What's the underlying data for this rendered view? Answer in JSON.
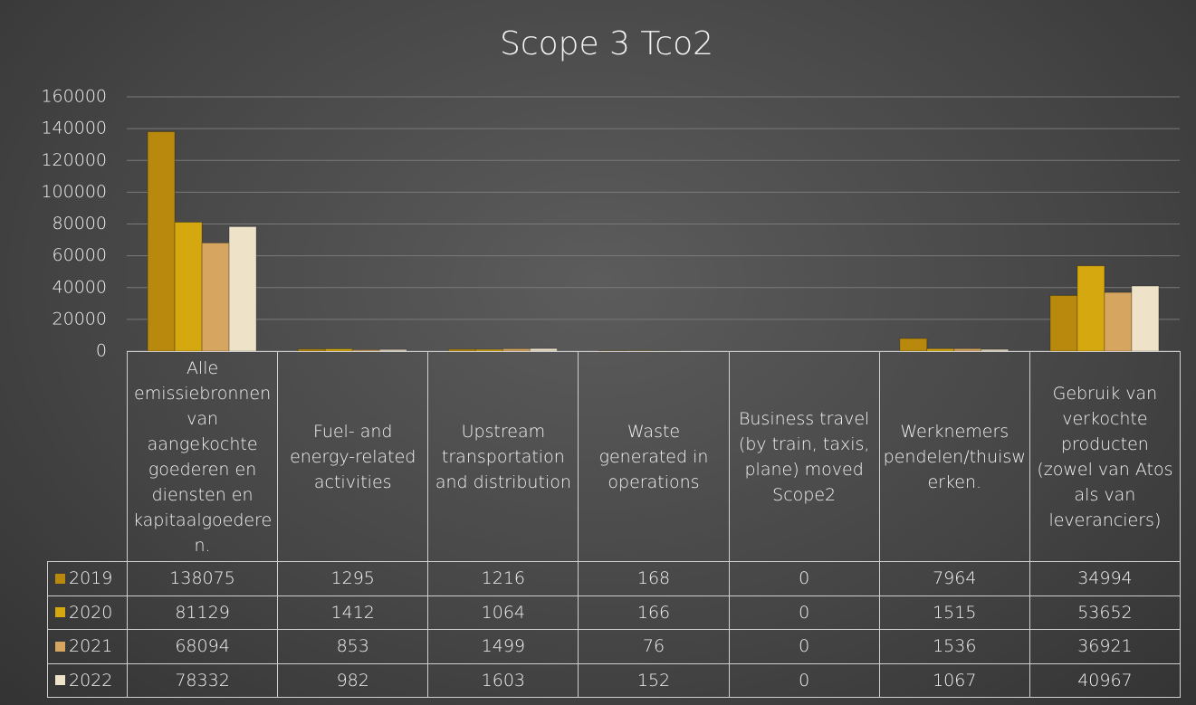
{
  "chart_data": {
    "type": "bar",
    "title": "Scope 3 Tco2",
    "categories": [
      "Alle emissiebronnen van aangekochte goederen en diensten en kapitaalgoederen.",
      "Fuel- and energy-related activities",
      "Upstream transportation and distribution",
      "Waste generated in operations",
      "Business travel (by train, taxis, plane) moved Scope2",
      "Werknemers pendelen/thuiswerken.",
      "Gebruik van verkochte producten (zowel van Atos als van leveranciers)"
    ],
    "series": [
      {
        "name": "2019",
        "color": "#b8890c",
        "values": [
          138075,
          1295,
          1216,
          168,
          0,
          7964,
          34994
        ]
      },
      {
        "name": "2020",
        "color": "#d6a810",
        "values": [
          81129,
          1412,
          1064,
          166,
          0,
          1515,
          53652
        ]
      },
      {
        "name": "2021",
        "color": "#d6a560",
        "values": [
          68094,
          853,
          1499,
          76,
          0,
          1536,
          36921
        ]
      },
      {
        "name": "2022",
        "color": "#eee2c8",
        "values": [
          78332,
          982,
          1603,
          152,
          0,
          1067,
          40967
        ]
      }
    ],
    "ylim": [
      0,
      160000
    ],
    "yticks": [
      0,
      20000,
      40000,
      60000,
      80000,
      100000,
      120000,
      140000,
      160000
    ],
    "grid": true
  }
}
